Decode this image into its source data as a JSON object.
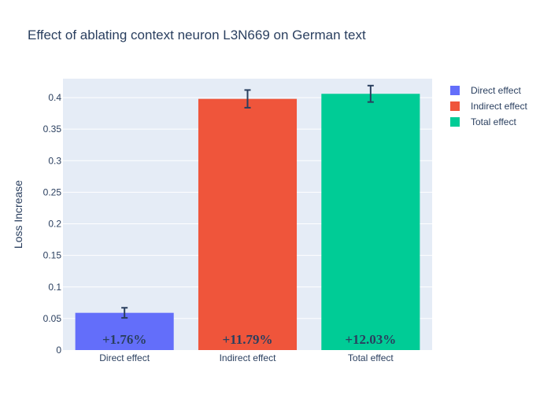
{
  "chart_data": {
    "type": "bar",
    "title": "Effect of ablating context neuron L3N669 on German text",
    "xlabel": "",
    "ylabel": "Loss Increase",
    "categories": [
      "Direct effect",
      "Indirect effect",
      "Total effect"
    ],
    "values": [
      0.059,
      0.398,
      0.406
    ],
    "error": [
      0.008,
      0.014,
      0.013
    ],
    "data_labels": [
      "+1.76%",
      "+11.79%",
      "+12.03%"
    ],
    "colors": [
      "#636efa",
      "#ef553b",
      "#00cc96"
    ],
    "ylim": [
      0,
      0.43
    ],
    "yticks": [
      0,
      0.05,
      0.1,
      0.15,
      0.2,
      0.25,
      0.3,
      0.35,
      0.4
    ],
    "ytick_labels": [
      "0",
      "0.05",
      "0.1",
      "0.15",
      "0.2",
      "0.25",
      "0.3",
      "0.35",
      "0.4"
    ],
    "legend": [
      "Direct effect",
      "Indirect effect",
      "Total effect"
    ],
    "legend_position": "top-right",
    "grid": true,
    "plot_background": "#e5ecf6",
    "grid_color": "#ffffff",
    "text_color": "#2a3f5f",
    "error_bar_color": "#2a3f5f"
  }
}
